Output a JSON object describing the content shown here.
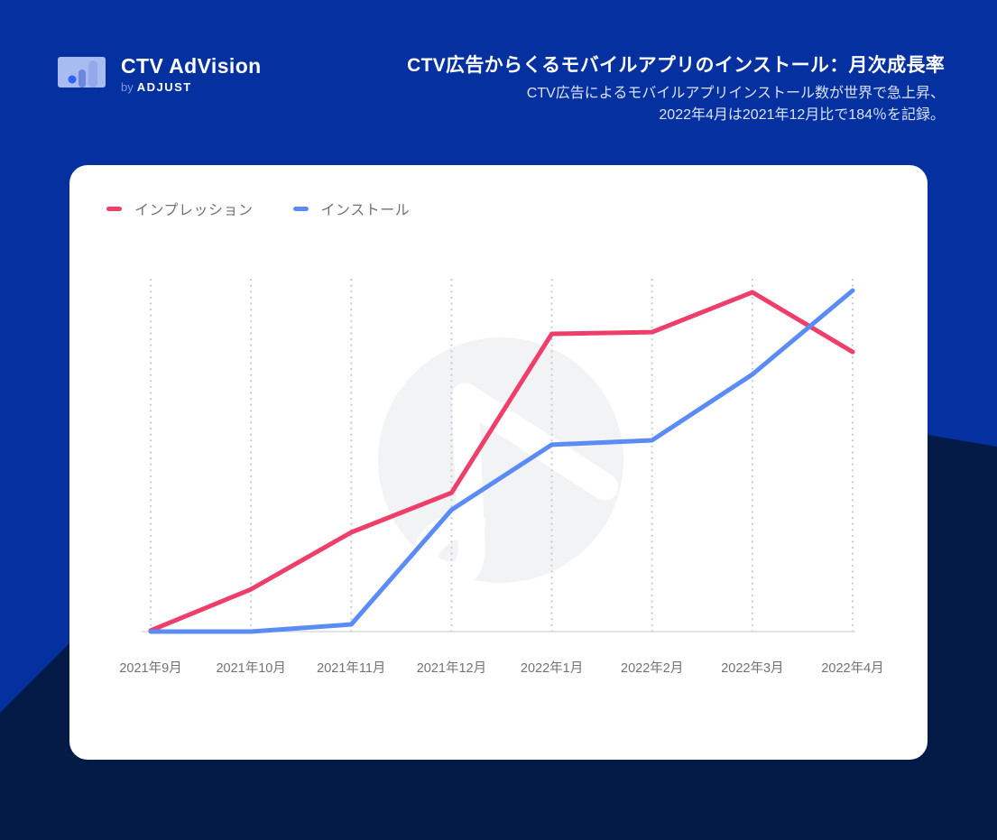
{
  "header": {
    "logo": {
      "brand": "CTV AdVision",
      "byline_prefix": "by",
      "byline_brand": "ADJUST"
    },
    "title": "CTV広告からくるモバイルアプリのインストール：月次成長率",
    "subtitle_line1": "CTV広告によるモバイルアプリインストール数が世界で急上昇、",
    "subtitle_line2": "2022年4月は2021年12月比で184％を記録。"
  },
  "colors": {
    "background_blue": "#0430A0",
    "background_dark_navy": "#041B48",
    "card_white": "#FFFFFF",
    "impressions_pink": "#EE3F6B",
    "installs_blue": "#5B8BF4",
    "axis_text_gray": "#6F7378",
    "gridline_gray": "#C8CCD2",
    "watermark_gray": "#F2F3F5"
  },
  "chart_data": {
    "type": "line",
    "title": "",
    "xlabel": "",
    "ylabel": "",
    "categories": [
      "2021年9月",
      "2021年10月",
      "2021年11月",
      "2021年12月",
      "2022年1月",
      "2022年2月",
      "2022年3月",
      "2022年4月"
    ],
    "series": [
      {
        "name": "インプレッション",
        "color": "#EE3F6B",
        "values": [
          0.3,
          12.4,
          29.1,
          40.7,
          87.3,
          87.8,
          99.5,
          82
        ]
      },
      {
        "name": "インストール",
        "color": "#5B8BF4",
        "values": [
          0,
          0,
          2.1,
          35.7,
          54.8,
          56.1,
          75.4,
          100
        ]
      }
    ],
    "ylim": [
      0,
      100
    ],
    "y_axis_labels_visible": false,
    "grid": "vertical-dotted",
    "legend_position": "top-left",
    "note": "values are relative growth index estimated from pixel heights; no y-axis scale shown"
  }
}
